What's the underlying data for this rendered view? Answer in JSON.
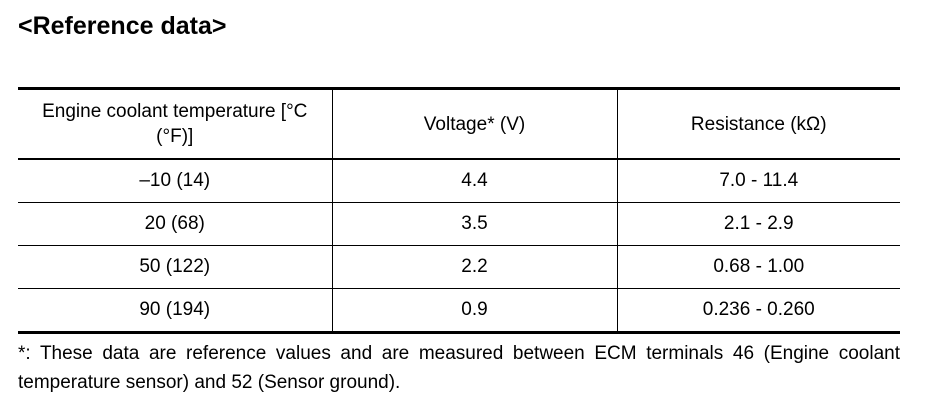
{
  "header": {
    "title": "<Reference data>"
  },
  "table": {
    "columns": [
      "Engine coolant temperature [°C (°F)]",
      "Voltage* (V)",
      "Resistance (kΩ)"
    ],
    "rows": [
      [
        "–10 (14)",
        "4.4",
        "7.0 - 11.4"
      ],
      [
        "20 (68)",
        "3.5",
        "2.1 - 2.9"
      ],
      [
        "50 (122)",
        "2.2",
        "0.68 - 1.00"
      ],
      [
        "90 (194)",
        "0.9",
        "0.236 - 0.260"
      ]
    ]
  },
  "footnote": "*: These data are reference values and are measured between ECM terminals 46 (Engine coolant temperature sensor) and 52 (Sensor ground)."
}
